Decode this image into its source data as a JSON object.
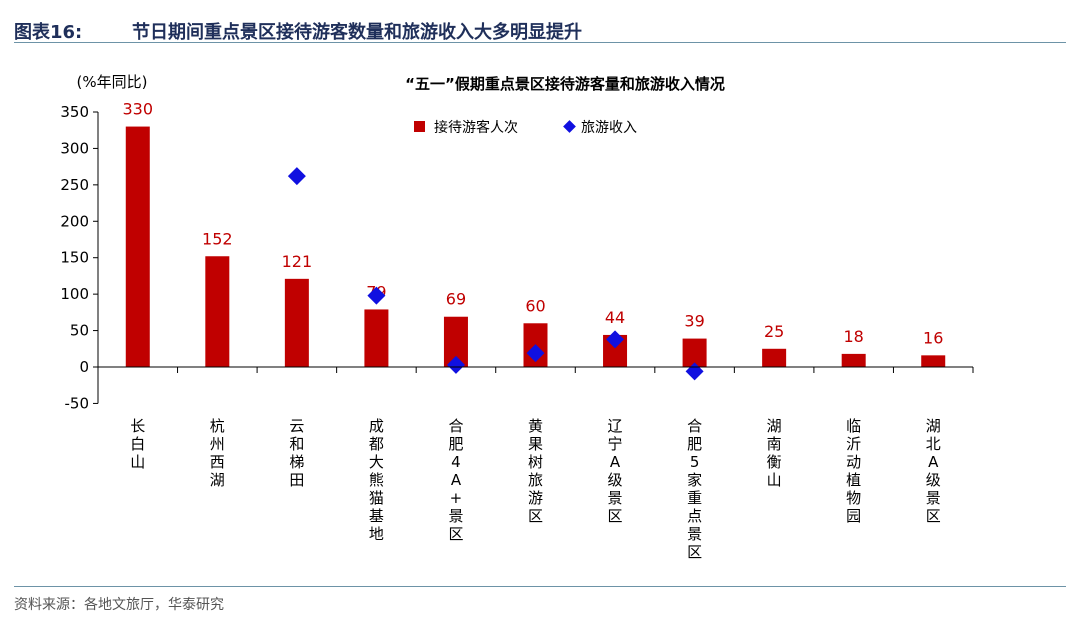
{
  "figure": {
    "number": "图表16:",
    "title": "节日期间重点景区接待游客数量和旅游收入大多明显提升",
    "source": "资料来源：各地文旅厅，华泰研究"
  },
  "colors": {
    "bar": "#c00000",
    "marker": "#1010e0",
    "label": "#c00000",
    "header": "#1f2f5a",
    "rule": "#6d93a7"
  },
  "chart_data": {
    "type": "bar",
    "title": "“五一”假期重点景区接待游客量和旅游收入情况",
    "ylabel": "(%年同比)",
    "ylim": [
      -50,
      350
    ],
    "yticks": [
      -50,
      0,
      50,
      100,
      150,
      200,
      250,
      300,
      350
    ],
    "legend_position": "top-center",
    "categories": [
      "长白山",
      "杭州西湖",
      "云和梯田",
      "成都大熊猫基地",
      "合肥4A+景区",
      "黄果树旅游区",
      "辽宁A级景区",
      "合肥5家重点景区",
      "湖南衡山",
      "临沂动植物园",
      "湖北A级景区"
    ],
    "series": [
      {
        "name": "接待游客人次",
        "kind": "bar",
        "values": [
          330,
          152,
          121,
          79,
          69,
          60,
          44,
          39,
          25,
          18,
          16
        ]
      },
      {
        "name": "旅游收入",
        "kind": "marker",
        "values": [
          null,
          null,
          262,
          98,
          3,
          19,
          38,
          -6,
          null,
          null,
          null
        ]
      }
    ]
  }
}
